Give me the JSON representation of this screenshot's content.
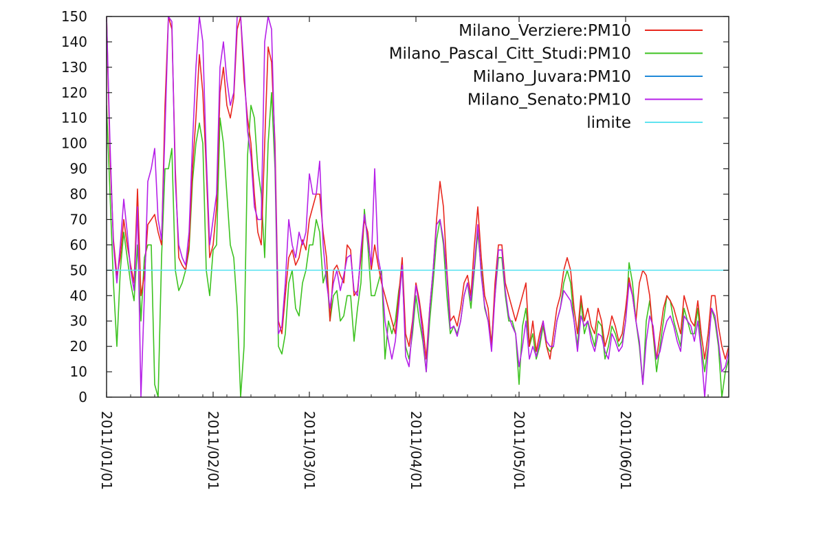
{
  "chart_data": {
    "type": "line",
    "title": "",
    "xlabel": "",
    "ylabel": "",
    "ylim": [
      0,
      150
    ],
    "xlim": [
      "2011-01-01",
      "2011-07-01"
    ],
    "grid": false,
    "legend_position": "top-right",
    "y_ticks": [
      "0",
      "10",
      "20",
      "30",
      "40",
      "50",
      "60",
      "70",
      "80",
      "90",
      "100",
      "110",
      "120",
      "130",
      "140",
      "150"
    ],
    "x_tick_dates": [
      "2011-01-01",
      "2011-02-01",
      "2011-03-01",
      "2011-04-01",
      "2011-05-01",
      "2011-06-01"
    ],
    "x_tick_labels": [
      "2011/01/01",
      "2011/02/01",
      "2011/03/01",
      "2011/04/01",
      "2011/05/01",
      "2011/06/01"
    ],
    "x_start": "2011-01-01",
    "series": [
      {
        "name": "Milano_Verziere:PM10",
        "color": "#e8261c",
        "dashed": false,
        "values": [
          150,
          95,
          62,
          48,
          55,
          70,
          60,
          52,
          45,
          82,
          40,
          48,
          68,
          70,
          72,
          65,
          60,
          115,
          150,
          145,
          90,
          55,
          52,
          50,
          60,
          90,
          110,
          135,
          120,
          90,
          55,
          60,
          75,
          120,
          130,
          115,
          110,
          118,
          145,
          150,
          125,
          110,
          100,
          80,
          65,
          60,
          100,
          138,
          132,
          100,
          30,
          25,
          40,
          55,
          58,
          52,
          55,
          62,
          58,
          70,
          75,
          80,
          80,
          65,
          55,
          30,
          50,
          52,
          48,
          45,
          60,
          58,
          40,
          42,
          55,
          70,
          65,
          50,
          60,
          52,
          45,
          40,
          35,
          30,
          25,
          40,
          55,
          25,
          20,
          30,
          45,
          38,
          28,
          15,
          35,
          50,
          70,
          85,
          75,
          50,
          30,
          32,
          28,
          35,
          45,
          48,
          40,
          60,
          75,
          55,
          40,
          35,
          20,
          45,
          60,
          60,
          45,
          40,
          35,
          30,
          35,
          40,
          45,
          20,
          30,
          18,
          25,
          30,
          20,
          15,
          25,
          35,
          40,
          50,
          55,
          50,
          35,
          25,
          40,
          30,
          35,
          28,
          25,
          35,
          30,
          20,
          25,
          32,
          28,
          22,
          25,
          35,
          47,
          40,
          30,
          45,
          50,
          48,
          40,
          25,
          15,
          25,
          35,
          40,
          38,
          35,
          30,
          25,
          40,
          35,
          30,
          28,
          38,
          25,
          15,
          25,
          40,
          40,
          28,
          20,
          15,
          20,
          22,
          25,
          28,
          30,
          25,
          30,
          35,
          28,
          26,
          25,
          35,
          30,
          25,
          22,
          25,
          20,
          25,
          45,
          40,
          30,
          20,
          15,
          30,
          40,
          50,
          40,
          20,
          15
        ]
      },
      {
        "name": "Milano_Pascal_Citt_Studi:PM10",
        "color": "#3cc21f",
        "dashed": false,
        "values": [
          115,
          80,
          45,
          20,
          50,
          65,
          55,
          45,
          38,
          60,
          30,
          55,
          60,
          60,
          5,
          0,
          55,
          90,
          90,
          98,
          50,
          42,
          45,
          50,
          58,
          85,
          100,
          108,
          100,
          50,
          40,
          58,
          60,
          110,
          100,
          80,
          60,
          55,
          35,
          0,
          20,
          95,
          115,
          110,
          90,
          80,
          55,
          100,
          120,
          90,
          20,
          17,
          25,
          45,
          50,
          35,
          32,
          45,
          50,
          60,
          60,
          70,
          65,
          45,
          50,
          30,
          40,
          42,
          30,
          32,
          40,
          40,
          22,
          35,
          45,
          74,
          60,
          40,
          40,
          45,
          50,
          15,
          30,
          25,
          30,
          42,
          50,
          20,
          15,
          25,
          40,
          30,
          22,
          10,
          30,
          45,
          62,
          70,
          60,
          40,
          25,
          28,
          25,
          30,
          40,
          45,
          35,
          50,
          65,
          50,
          35,
          30,
          22,
          40,
          55,
          55,
          40,
          30,
          30,
          25,
          5,
          28,
          35,
          20,
          25,
          15,
          20,
          28,
          20,
          18,
          20,
          30,
          35,
          45,
          50,
          45,
          30,
          20,
          38,
          25,
          30,
          25,
          20,
          30,
          28,
          15,
          20,
          28,
          25,
          20,
          22,
          30,
          53,
          45,
          30,
          20,
          5,
          30,
          38,
          25,
          10,
          20,
          30,
          40,
          38,
          30,
          25,
          20,
          35,
          30,
          25,
          25,
          35,
          20,
          10,
          20,
          35,
          30,
          20,
          0,
          10,
          15,
          17,
          17,
          16,
          15,
          12,
          15,
          35,
          25,
          20,
          18,
          20,
          25,
          20,
          15,
          10,
          15,
          20,
          35,
          30,
          25,
          15,
          10,
          20,
          30,
          40,
          30,
          10,
          10
        ]
      },
      {
        "name": "Milano_Juvara:PM10",
        "color": "#1e88d8",
        "dashed": false,
        "values": []
      },
      {
        "name": "Milano_Senato:PM10",
        "color": "#b51fe8",
        "dashed": false,
        "values": [
          150,
          100,
          60,
          45,
          60,
          78,
          65,
          50,
          42,
          75,
          0,
          40,
          85,
          90,
          98,
          70,
          62,
          105,
          150,
          148,
          85,
          60,
          55,
          52,
          65,
          100,
          130,
          150,
          140,
          95,
          60,
          70,
          80,
          130,
          140,
          125,
          115,
          120,
          150,
          150,
          130,
          105,
          95,
          75,
          70,
          70,
          140,
          150,
          145,
          95,
          25,
          28,
          45,
          70,
          60,
          55,
          65,
          60,
          65,
          88,
          80,
          80,
          93,
          60,
          45,
          35,
          45,
          50,
          42,
          48,
          55,
          56,
          42,
          40,
          58,
          72,
          62,
          52,
          90,
          55,
          48,
          30,
          22,
          15,
          22,
          36,
          52,
          16,
          12,
          28,
          44,
          36,
          24,
          10,
          35,
          50,
          68,
          70,
          62,
          48,
          27,
          28,
          24,
          30,
          40,
          45,
          38,
          52,
          68,
          48,
          36,
          30,
          18,
          40,
          58,
          58,
          42,
          32,
          28,
          25,
          12,
          20,
          30,
          15,
          20,
          16,
          22,
          30,
          22,
          20,
          20,
          30,
          35,
          42,
          40,
          38,
          30,
          18,
          32,
          28,
          30,
          22,
          18,
          25,
          24,
          18,
          15,
          25,
          22,
          18,
          20,
          30,
          45,
          40,
          30,
          22,
          5,
          22,
          32,
          28,
          15,
          18,
          25,
          30,
          32,
          28,
          22,
          18,
          32,
          30,
          28,
          22,
          30,
          18,
          0,
          18,
          35,
          32,
          22,
          10,
          12,
          18,
          22,
          24,
          25,
          28,
          30,
          25,
          30,
          24,
          22,
          18,
          30,
          28,
          25,
          0,
          0,
          10,
          25,
          47,
          40,
          28,
          15,
          10,
          25,
          38,
          46,
          35,
          18,
          15
        ]
      },
      {
        "name": "limite",
        "color": "#5fe3f0",
        "dashed": false,
        "values": [
          50,
          50
        ]
      }
    ]
  }
}
